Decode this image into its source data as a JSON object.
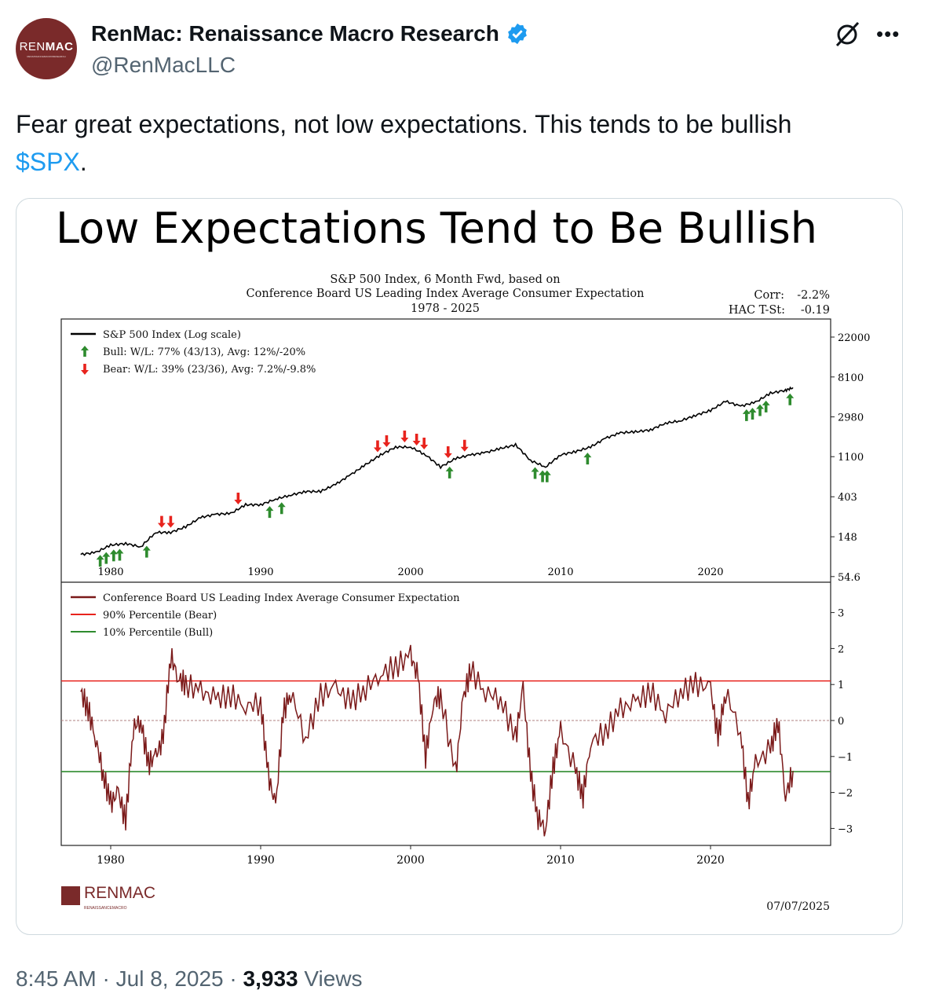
{
  "author": {
    "avatar_text_light": "REN",
    "avatar_text_bold": "MAC",
    "avatar_subtext": "RENAISSANCEMACRORESEARCH",
    "name": "RenMac: Renaissance Macro Research",
    "handle": "@RenMacLLC"
  },
  "tweet": {
    "text": "Fear great expectations, not low expectations.  This tends to be bullish ",
    "cashtag": "$SPX",
    "text_end": "."
  },
  "footer": {
    "time": "8:45 AM",
    "date": "Jul 8, 2025",
    "views_count": "3,933",
    "views_label": "Views",
    "sep": " · "
  },
  "colors": {
    "accent": "#1d9bf0",
    "brand": "#7a2a2a",
    "spx": "#000000",
    "expect": "#7b1a1a",
    "bear": "#e8231d",
    "bull": "#2e8b2e"
  },
  "chart_data": {
    "type": "line",
    "title": "Low Expectations Tend to Be Bullish",
    "subtitle": [
      "S&P 500 Index, 6 Month Fwd, based on",
      "Conference Board US Leading Index Average Consumer Expectation",
      "1978 - 2025"
    ],
    "stats": {
      "corr_label": "Corr:",
      "corr": "-2.2%",
      "hac_label": "HAC T-St:",
      "hac": "-0.19"
    },
    "xlim": [
      1978,
      2025.6
    ],
    "xticks": [
      1980,
      1990,
      2000,
      2010,
      2020
    ],
    "top": {
      "yscale": "log",
      "ylim": [
        54.6,
        22000
      ],
      "yticks": [
        "22000",
        "8100",
        "2980",
        "1100",
        "403",
        "148",
        "54.6"
      ],
      "legend": [
        "S&P 500 Index (Log scale)",
        "Bull:  W/L: 77% (43/13), Avg: 12%/-20%",
        "Bear:  W/L: 39% (23/36), Avg: 7.2%/-9.8%"
      ],
      "spx": {
        "x": [
          1978,
          1979,
          1980,
          1981,
          1982,
          1983,
          1984,
          1985,
          1986,
          1987,
          1988,
          1989,
          1990,
          1991,
          1992,
          1993,
          1994,
          1995,
          1996,
          1997,
          1998,
          1999,
          2000,
          2001,
          2002,
          2003,
          2004,
          2005,
          2006,
          2007,
          2008,
          2009,
          2010,
          2011,
          2012,
          2013,
          2014,
          2015,
          2016,
          2017,
          2018,
          2019,
          2020,
          2021,
          2022,
          2023,
          2024,
          2025,
          2025.5
        ],
        "y": [
          95,
          100,
          120,
          125,
          115,
          165,
          165,
          190,
          240,
          260,
          265,
          330,
          330,
          380,
          420,
          460,
          460,
          550,
          700,
          900,
          1150,
          1400,
          1400,
          1150,
          850,
          1050,
          1150,
          1220,
          1350,
          1480,
          1000,
          850,
          1150,
          1250,
          1400,
          1750,
          2000,
          2050,
          2150,
          2550,
          2700,
          3100,
          3500,
          4400,
          3900,
          4300,
          5400,
          5800,
          6200
        ]
      },
      "bull_signals": [
        1979.3,
        1979.7,
        1980.2,
        1980.6,
        1982.4,
        1990.6,
        1991.4,
        2002.6,
        2008.3,
        2008.8,
        2009.1,
        2011.8,
        2022.4,
        2022.8,
        2023.3,
        2023.7,
        2025.3
      ],
      "bear_signals": [
        1983.4,
        1984.0,
        1988.5,
        1997.8,
        1998.4,
        1999.6,
        2000.4,
        2000.9,
        2002.5,
        2003.6
      ]
    },
    "bottom": {
      "ylim": [
        -3.3,
        3.5
      ],
      "yticks": [
        3,
        2,
        1,
        0,
        -1,
        -2,
        -3
      ],
      "legend": [
        "Conference Board US Leading Index Average Consumer Expectation",
        "90% Percentile (Bear)",
        "10% Percentile (Bull)"
      ],
      "bear_threshold": 1.1,
      "bull_threshold": -1.42,
      "expect": {
        "x": [
          1978,
          1978.5,
          1979,
          1979.5,
          1980,
          1980.5,
          1981,
          1981.5,
          1982,
          1982.5,
          1983,
          1983.5,
          1984,
          1984.5,
          1985,
          1986,
          1987,
          1988,
          1989,
          1990,
          1990.5,
          1991,
          1991.5,
          1992,
          1993,
          1994,
          1995,
          1996,
          1997,
          1998,
          1999,
          2000,
          2000.5,
          2001,
          2001.5,
          2002,
          2003,
          2003.5,
          2004,
          2005,
          2006,
          2007,
          2007.5,
          2008,
          2008.5,
          2009,
          2009.5,
          2010,
          2011,
          2011.5,
          2012,
          2013,
          2014,
          2015,
          2016,
          2017,
          2018,
          2019,
          2020,
          2020.5,
          2021,
          2022,
          2022.5,
          2023,
          2024,
          2024.5,
          2025,
          2025.5
        ],
        "y": [
          0.8,
          0.3,
          -0.5,
          -1.5,
          -2.3,
          -2.0,
          -2.8,
          -0.2,
          0,
          -1.2,
          -1.0,
          -0.5,
          1.8,
          1.2,
          1.0,
          0.8,
          0.6,
          0.7,
          0.4,
          0.5,
          -1.5,
          -2.4,
          0.2,
          0.8,
          -0.5,
          0.7,
          0.9,
          0.5,
          0.9,
          1.3,
          1.5,
          1.8,
          1.2,
          -1.0,
          0.5,
          0.7,
          -1.5,
          0.6,
          1.4,
          0.8,
          0.6,
          -0.5,
          0.9,
          -1.5,
          -2.7,
          -3.0,
          -1.3,
          -0.3,
          -1.4,
          -2.1,
          -0.6,
          -0.3,
          0.3,
          0.5,
          0.8,
          0.2,
          0.8,
          1.0,
          0.9,
          -0.5,
          0.8,
          -0.3,
          -2.3,
          -1.2,
          -0.8,
          0,
          -2.1,
          -1.4
        ]
      }
    },
    "logo_text": "RENMAC",
    "logo_sub": "RENAISSANCEMACRO",
    "date": "07/07/2025"
  }
}
